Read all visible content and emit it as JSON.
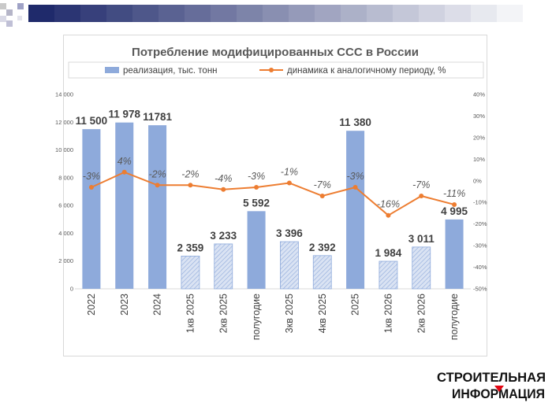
{
  "colors": {
    "bar_solid": "#8eaadb",
    "bar_hatched_fill": "#dae3f3",
    "bar_hatched_stroke": "#8eaadb",
    "line": "#ed7d31",
    "strip_dark": "#1f2a6b",
    "logo_red": "#e30613"
  },
  "logo": {
    "line1": "СТРОИТЕЛЬНАЯ",
    "line2": "ИНФОРМАЦИЯ"
  },
  "chart_data": {
    "type": "bar",
    "title": "Потребление модифицированных ССС в России",
    "categories": [
      "2022",
      "2023",
      "2024",
      "1кв 2025",
      "2кв 2025",
      "полугодие",
      "3кв 2025",
      "4кв 2025",
      "2025",
      "1кв 2026",
      "2кв 2026",
      "полугодие"
    ],
    "series": [
      {
        "name": "реализация, тыс. тонн",
        "type": "bar",
        "axis": "left",
        "values": [
          11500,
          11978,
          11781,
          2359,
          3233,
          5592,
          3396,
          2392,
          11380,
          1984,
          3011,
          4995
        ],
        "labels": [
          "11 500",
          "11 978",
          "11781",
          "2 359",
          "3 233",
          "5 592",
          "3 396",
          "2 392",
          "11 380",
          "1 984",
          "3 011",
          "4 995"
        ],
        "hatched": [
          false,
          false,
          false,
          true,
          true,
          false,
          true,
          true,
          false,
          true,
          true,
          false
        ]
      },
      {
        "name": "динамика к аналогичному периоду, %",
        "type": "line",
        "axis": "right",
        "values": [
          -3,
          4,
          -2,
          -2,
          -4,
          -3,
          -1,
          -7,
          -3,
          -16,
          -7,
          -11
        ],
        "labels": [
          "-3%",
          "4%",
          "-2%",
          "-2%",
          "-4%",
          "-3%",
          "-1%",
          "-7%",
          "-3%",
          "-16%",
          "-7%",
          "-11%"
        ]
      }
    ],
    "y_left": {
      "min": 0,
      "max": 14000,
      "ticks": [
        0,
        2000,
        4000,
        6000,
        8000,
        10000,
        12000,
        14000
      ],
      "tick_labels": [
        "0",
        "2 000",
        "4 000",
        "6 000",
        "8 000",
        "10 000",
        "12 000",
        "14 000"
      ]
    },
    "y_right": {
      "min": -50,
      "max": 40,
      "ticks": [
        -50,
        -40,
        -30,
        -20,
        -10,
        0,
        10,
        20,
        30,
        40
      ],
      "tick_labels": [
        "-50%",
        "-40%",
        "-30%",
        "-20%",
        "-10%",
        "0%",
        "10%",
        "20%",
        "30%",
        "40%"
      ]
    },
    "grid": false,
    "legend": "top"
  }
}
